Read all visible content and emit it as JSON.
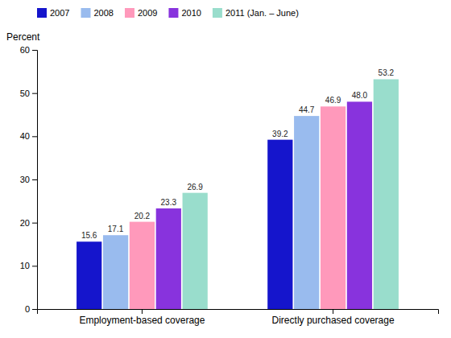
{
  "chart_data": {
    "type": "bar",
    "categories": [
      "Employment-based coverage",
      "Directly purchased coverage"
    ],
    "series": [
      {
        "name": "2007",
        "color": "#1515CC",
        "values": [
          15.6,
          39.2
        ],
        "value_labels": [
          "15.6",
          "39.2"
        ]
      },
      {
        "name": "2008",
        "color": "#99BBEE",
        "values": [
          17.1,
          44.7
        ],
        "value_labels": [
          "17.1",
          "44.7"
        ]
      },
      {
        "name": "2009",
        "color": "#FF99BB",
        "values": [
          20.2,
          46.9
        ],
        "value_labels": [
          "20.2",
          "46.9"
        ]
      },
      {
        "name": "2010",
        "color": "#8833DD",
        "values": [
          23.3,
          48.0
        ],
        "value_labels": [
          "23.3",
          "48.0"
        ]
      },
      {
        "name": "2011 (Jan. – June)",
        "color": "#99DDCC",
        "values": [
          26.9,
          53.2
        ],
        "value_labels": [
          "26.9",
          "53.2"
        ]
      }
    ],
    "ylabel": "Percent",
    "ylim": [
      0,
      60
    ],
    "yticks": [
      0,
      10,
      20,
      30,
      40,
      50,
      60
    ],
    "grid": false,
    "legend": "top",
    "data_labels": true
  }
}
